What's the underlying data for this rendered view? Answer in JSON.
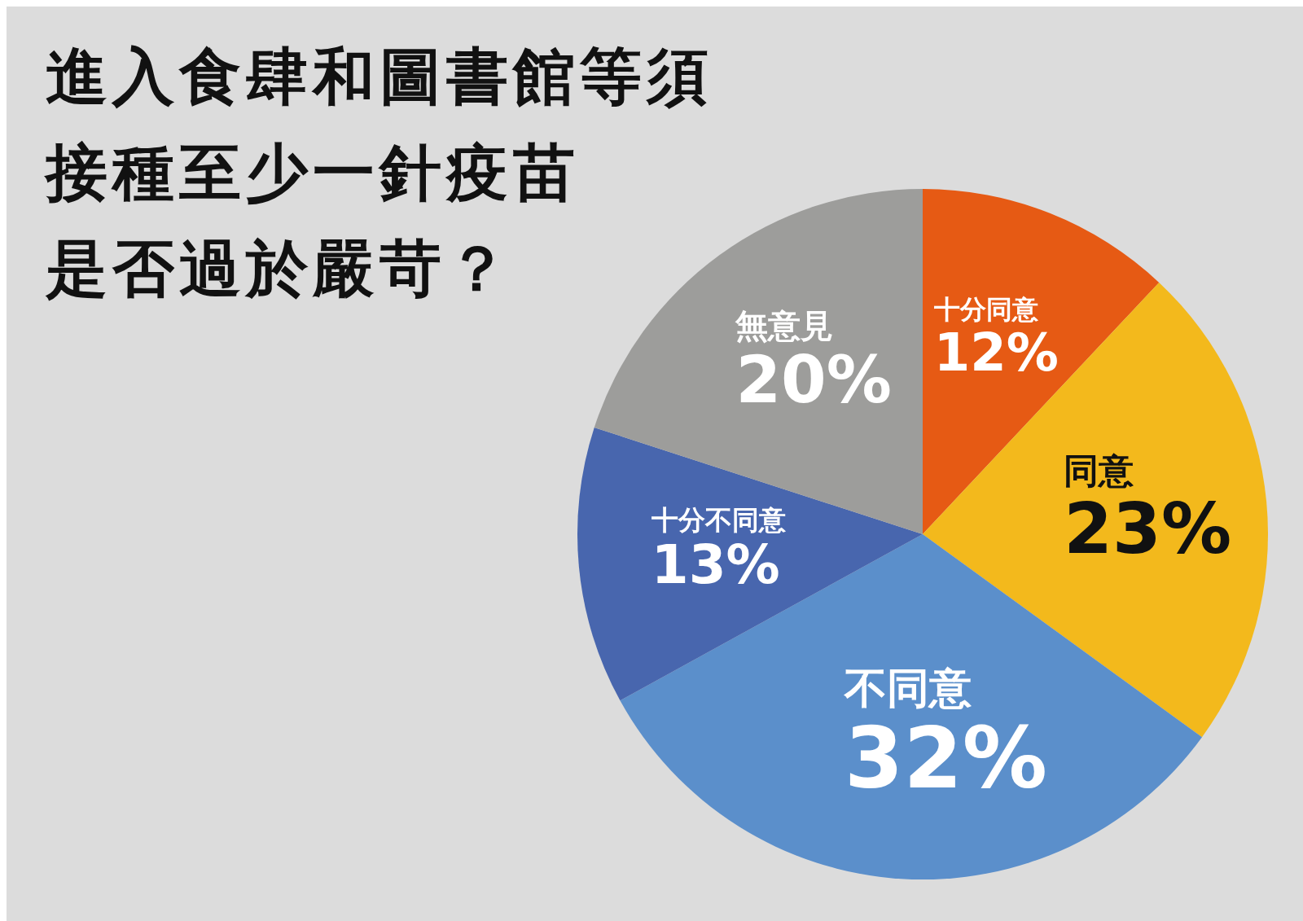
{
  "chart_data": {
    "type": "pie",
    "title": "進入食肆和圖書館等須接種至少一針疫苗",
    "subtitle": "是否過於嚴苛？",
    "categories": [
      "十分同意",
      "同意",
      "不同意",
      "十分不同意",
      "無意見"
    ],
    "values": [
      12,
      23,
      32,
      13,
      20
    ],
    "value_labels": [
      "12%",
      "23%",
      "32%",
      "13%",
      "20%"
    ],
    "colors": [
      "#e65a14",
      "#f3b91c",
      "#5b8fcb",
      "#4866ae",
      "#9d9d9b"
    ]
  }
}
